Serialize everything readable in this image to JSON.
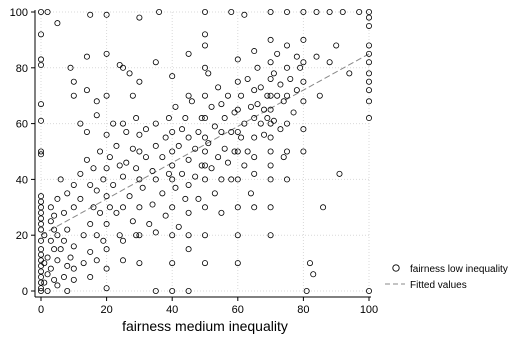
{
  "chart_data": {
    "type": "scatter",
    "xlabel": "fairness medium inequality",
    "ylabel": "",
    "xlim": [
      0,
      100
    ],
    "ylim": [
      0,
      100
    ],
    "xticks": [
      0,
      20,
      40,
      60,
      80,
      100
    ],
    "yticks": [
      0,
      20,
      40,
      60,
      80,
      100
    ],
    "grid": true,
    "legend": {
      "placement": "right",
      "entries": [
        "fairness low inequality",
        "Fitted values"
      ]
    },
    "series": [
      {
        "name": "fairness low inequality",
        "kind": "scatter",
        "marker": "hollow-circle",
        "color": "#000000",
        "points": [
          [
            0,
            100
          ],
          [
            2,
            100
          ],
          [
            5,
            96
          ],
          [
            15,
            99
          ],
          [
            20,
            99
          ],
          [
            30,
            98
          ],
          [
            36,
            100
          ],
          [
            50,
            100
          ],
          [
            58,
            100
          ],
          [
            62,
            99
          ],
          [
            70,
            100
          ],
          [
            75,
            100
          ],
          [
            80,
            100
          ],
          [
            84,
            100
          ],
          [
            88,
            100
          ],
          [
            92,
            100
          ],
          [
            97,
            100
          ],
          [
            100,
            100
          ],
          [
            0,
            92
          ],
          [
            0,
            83
          ],
          [
            0,
            81
          ],
          [
            0,
            67
          ],
          [
            0,
            61
          ],
          [
            0,
            50
          ],
          [
            0,
            49
          ],
          [
            0,
            34
          ],
          [
            0,
            32
          ],
          [
            0,
            30
          ],
          [
            0,
            28
          ],
          [
            0,
            26
          ],
          [
            0,
            24
          ],
          [
            0,
            22
          ],
          [
            0,
            18
          ],
          [
            0,
            15
          ],
          [
            0,
            13
          ],
          [
            0,
            11
          ],
          [
            0,
            9
          ],
          [
            0,
            7
          ],
          [
            0,
            5
          ],
          [
            0,
            3
          ],
          [
            0,
            1
          ],
          [
            0,
            0
          ],
          [
            1,
            20
          ],
          [
            1,
            10
          ],
          [
            1,
            3
          ],
          [
            2,
            12
          ],
          [
            2,
            6
          ],
          [
            2,
            0
          ],
          [
            3,
            30
          ],
          [
            3,
            25
          ],
          [
            3,
            18
          ],
          [
            3,
            8
          ],
          [
            4,
            27
          ],
          [
            4,
            22
          ],
          [
            4,
            15
          ],
          [
            4,
            4
          ],
          [
            5,
            33
          ],
          [
            5,
            20
          ],
          [
            5,
            11
          ],
          [
            5,
            2
          ],
          [
            6,
            40
          ],
          [
            6,
            15
          ],
          [
            7,
            28
          ],
          [
            7,
            18
          ],
          [
            7,
            5
          ],
          [
            8,
            35
          ],
          [
            8,
            22
          ],
          [
            8,
            9
          ],
          [
            8,
            0
          ],
          [
            9,
            80
          ],
          [
            9,
            12
          ],
          [
            10,
            75
          ],
          [
            10,
            70
          ],
          [
            10,
            38
          ],
          [
            10,
            30
          ],
          [
            10,
            16
          ],
          [
            10,
            8
          ],
          [
            10,
            4
          ],
          [
            12,
            60
          ],
          [
            12,
            42
          ],
          [
            12,
            33
          ],
          [
            13,
            20
          ],
          [
            13,
            10
          ],
          [
            14,
            84
          ],
          [
            14,
            72
          ],
          [
            14,
            57
          ],
          [
            14,
            47
          ],
          [
            15,
            38
          ],
          [
            15,
            24
          ],
          [
            15,
            14
          ],
          [
            15,
            5
          ],
          [
            16,
            44
          ],
          [
            16,
            30
          ],
          [
            17,
            68
          ],
          [
            17,
            63
          ],
          [
            17,
            36
          ],
          [
            17,
            20
          ],
          [
            17,
            11
          ],
          [
            18,
            50
          ],
          [
            18,
            28
          ],
          [
            19,
            40
          ],
          [
            19,
            18
          ],
          [
            20,
            85
          ],
          [
            20,
            70
          ],
          [
            20,
            56
          ],
          [
            20,
            44
          ],
          [
            20,
            34
          ],
          [
            20,
            24
          ],
          [
            20,
            15
          ],
          [
            20,
            8
          ],
          [
            20,
            1
          ],
          [
            21,
            48
          ],
          [
            21,
            30
          ],
          [
            22,
            60
          ],
          [
            22,
            38
          ],
          [
            23,
            52
          ],
          [
            23,
            28
          ],
          [
            24,
            81
          ],
          [
            24,
            45
          ],
          [
            24,
            20
          ],
          [
            25,
            80
          ],
          [
            25,
            60
          ],
          [
            25,
            41
          ],
          [
            25,
            30
          ],
          [
            25,
            18
          ],
          [
            25,
            11
          ],
          [
            26,
            57
          ],
          [
            26,
            46
          ],
          [
            27,
            78
          ],
          [
            27,
            34
          ],
          [
            28,
            70
          ],
          [
            28,
            51
          ],
          [
            28,
            25
          ],
          [
            29,
            62
          ],
          [
            29,
            44
          ],
          [
            29,
            20
          ],
          [
            30,
            75
          ],
          [
            30,
            56
          ],
          [
            30,
            50
          ],
          [
            30,
            40
          ],
          [
            30,
            30
          ],
          [
            30,
            20
          ],
          [
            30,
            10
          ],
          [
            31,
            37
          ],
          [
            32,
            58
          ],
          [
            32,
            48
          ],
          [
            33,
            24
          ],
          [
            34,
            43
          ],
          [
            34,
            31
          ],
          [
            35,
            82
          ],
          [
            35,
            60
          ],
          [
            35,
            52
          ],
          [
            35,
            40
          ],
          [
            35,
            21
          ],
          [
            35,
            0
          ],
          [
            37,
            48
          ],
          [
            37,
            35
          ],
          [
            38,
            55
          ],
          [
            38,
            27
          ],
          [
            39,
            62
          ],
          [
            39,
            42
          ],
          [
            40,
            77
          ],
          [
            40,
            57
          ],
          [
            40,
            50
          ],
          [
            40,
            45
          ],
          [
            40,
            40
          ],
          [
            40,
            30
          ],
          [
            40,
            20
          ],
          [
            40,
            10
          ],
          [
            40,
            0
          ],
          [
            41,
            66
          ],
          [
            41,
            37
          ],
          [
            42,
            52
          ],
          [
            42,
            23
          ],
          [
            43,
            58
          ],
          [
            43,
            42
          ],
          [
            44,
            62
          ],
          [
            44,
            33
          ],
          [
            45,
            85
          ],
          [
            45,
            70
          ],
          [
            45,
            55
          ],
          [
            45,
            47
          ],
          [
            45,
            38
          ],
          [
            45,
            28
          ],
          [
            45,
            20
          ],
          [
            45,
            15
          ],
          [
            45,
            0
          ],
          [
            46,
            68
          ],
          [
            47,
            51
          ],
          [
            47,
            41
          ],
          [
            48,
            57
          ],
          [
            48,
            33
          ],
          [
            49,
            62
          ],
          [
            49,
            45
          ],
          [
            50,
            92
          ],
          [
            50,
            88
          ],
          [
            50,
            80
          ],
          [
            50,
            70
          ],
          [
            50,
            62
          ],
          [
            50,
            55
          ],
          [
            50,
            50
          ],
          [
            50,
            45
          ],
          [
            50,
            40
          ],
          [
            50,
            30
          ],
          [
            50,
            20
          ],
          [
            50,
            10
          ],
          [
            51,
            78
          ],
          [
            51,
            53
          ],
          [
            52,
            66
          ],
          [
            52,
            44
          ],
          [
            53,
            59
          ],
          [
            53,
            35
          ],
          [
            54,
            73
          ],
          [
            54,
            48
          ],
          [
            55,
            67
          ],
          [
            55,
            57
          ],
          [
            55,
            40
          ],
          [
            55,
            28
          ],
          [
            56,
            62
          ],
          [
            56,
            51
          ],
          [
            57,
            70
          ],
          [
            57,
            46
          ],
          [
            58,
            57
          ],
          [
            58,
            40
          ],
          [
            59,
            64
          ],
          [
            59,
            50
          ],
          [
            60,
            83
          ],
          [
            60,
            75
          ],
          [
            60,
            65
          ],
          [
            60,
            57
          ],
          [
            60,
            50
          ],
          [
            60,
            40
          ],
          [
            60,
            30
          ],
          [
            60,
            20
          ],
          [
            60,
            10
          ],
          [
            61,
            70
          ],
          [
            61,
            55
          ],
          [
            62,
            60
          ],
          [
            62,
            45
          ],
          [
            63,
            76
          ],
          [
            63,
            50
          ],
          [
            64,
            66
          ],
          [
            64,
            35
          ],
          [
            65,
            86
          ],
          [
            65,
            72
          ],
          [
            65,
            62
          ],
          [
            65,
            55
          ],
          [
            65,
            48
          ],
          [
            65,
            42
          ],
          [
            65,
            30
          ],
          [
            66,
            80
          ],
          [
            66,
            67
          ],
          [
            67,
            73
          ],
          [
            67,
            60
          ],
          [
            68,
            65
          ],
          [
            68,
            56
          ],
          [
            69,
            70
          ],
          [
            69,
            62
          ],
          [
            70,
            90
          ],
          [
            70,
            82
          ],
          [
            70,
            76
          ],
          [
            70,
            70
          ],
          [
            70,
            65
          ],
          [
            70,
            60
          ],
          [
            70,
            55
          ],
          [
            70,
            50
          ],
          [
            70,
            45
          ],
          [
            70,
            40
          ],
          [
            70,
            30
          ],
          [
            70,
            20
          ],
          [
            71,
            78
          ],
          [
            71,
            61
          ],
          [
            72,
            85
          ],
          [
            72,
            70
          ],
          [
            73,
            74
          ],
          [
            73,
            58
          ],
          [
            74,
            68
          ],
          [
            74,
            48
          ],
          [
            75,
            88
          ],
          [
            75,
            80
          ],
          [
            75,
            70
          ],
          [
            75,
            60
          ],
          [
            75,
            50
          ],
          [
            75,
            40
          ],
          [
            76,
            76
          ],
          [
            77,
            64
          ],
          [
            78,
            84
          ],
          [
            78,
            72
          ],
          [
            79,
            80
          ],
          [
            80,
            90
          ],
          [
            80,
            82
          ],
          [
            80,
            75
          ],
          [
            80,
            68
          ],
          [
            80,
            58
          ],
          [
            80,
            50
          ],
          [
            81,
            0
          ],
          [
            82,
            10
          ],
          [
            83,
            6
          ],
          [
            84,
            84
          ],
          [
            85,
            70
          ],
          [
            86,
            30
          ],
          [
            88,
            82
          ],
          [
            90,
            88
          ],
          [
            91,
            42
          ],
          [
            94,
            78
          ],
          [
            100,
            98
          ],
          [
            100,
            95
          ],
          [
            100,
            88
          ],
          [
            100,
            85
          ],
          [
            100,
            82
          ],
          [
            100,
            78
          ],
          [
            100,
            75
          ],
          [
            100,
            72
          ],
          [
            100,
            68
          ],
          [
            100,
            62
          ],
          [
            100,
            0
          ]
        ]
      },
      {
        "name": "Fitted values",
        "kind": "line",
        "style": "dashed",
        "color": "#888888",
        "points": [
          [
            0,
            20
          ],
          [
            100,
            85
          ]
        ]
      }
    ]
  }
}
